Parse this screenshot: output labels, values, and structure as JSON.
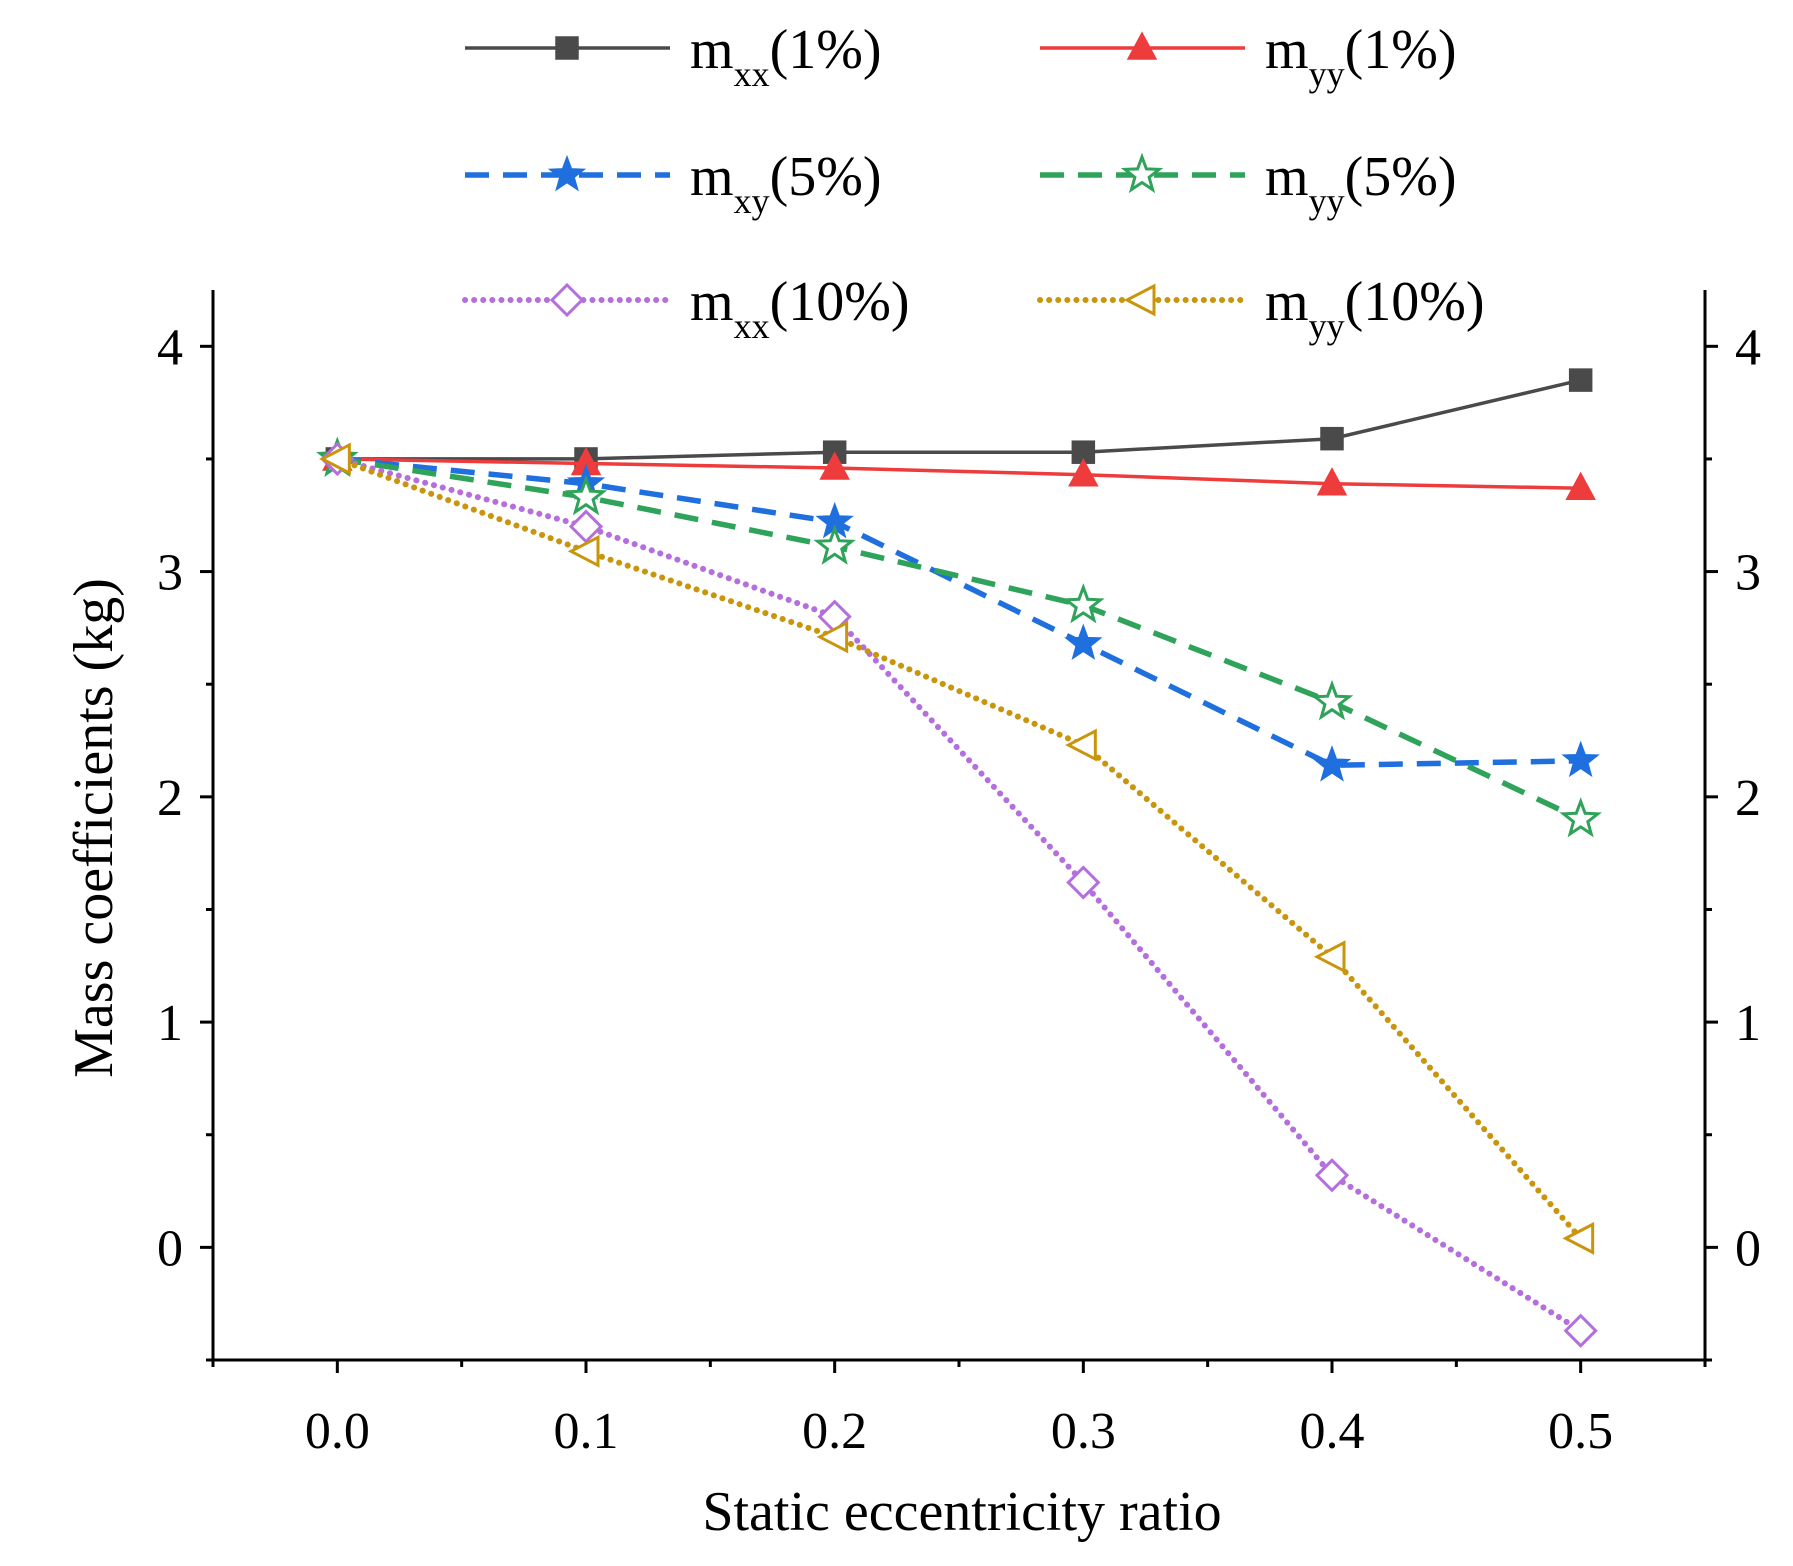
{
  "chart_data": {
    "type": "line",
    "title": "",
    "xlabel": "Static eccentricity ratio",
    "ylabel": "Mass coefficients (kg)",
    "xlim": [
      -0.05,
      0.55
    ],
    "ylim": [
      -0.5,
      4.25
    ],
    "x_ticks": [
      0.0,
      0.1,
      0.2,
      0.3,
      0.4,
      0.5
    ],
    "x_tick_labels": [
      "0.0",
      "0.1",
      "0.2",
      "0.3",
      "0.4",
      "0.5"
    ],
    "y_ticks": [
      0,
      1,
      2,
      3,
      4
    ],
    "y_tick_labels": [
      "0",
      "1",
      "2",
      "3",
      "4"
    ],
    "legend_position": "top",
    "x": [
      0.0,
      0.1,
      0.2,
      0.3,
      0.4,
      0.5
    ],
    "series": [
      {
        "name_main": "m",
        "name_sub": "xx",
        "name_suffix": "(1%)",
        "color": "#4a4a4a",
        "dash": "solid",
        "marker": "square",
        "filled": true,
        "values": [
          3.5,
          3.5,
          3.53,
          3.53,
          3.59,
          3.85
        ]
      },
      {
        "name_main": "m",
        "name_sub": "yy",
        "name_suffix": "(1%)",
        "color": "#ee3b3b",
        "dash": "solid",
        "marker": "triangle",
        "filled": true,
        "values": [
          3.5,
          3.48,
          3.46,
          3.43,
          3.39,
          3.37
        ]
      },
      {
        "name_main": "m",
        "name_sub": "xy",
        "name_suffix": "(5%)",
        "color": "#1f6fde",
        "dash": "dashed",
        "marker": "star",
        "filled": true,
        "values": [
          3.5,
          3.39,
          3.22,
          2.68,
          2.14,
          2.16
        ]
      },
      {
        "name_main": "m",
        "name_sub": "yy",
        "name_suffix": "(5%)",
        "color": "#2fa35a",
        "dash": "dashed",
        "marker": "star",
        "filled": false,
        "values": [
          3.5,
          3.33,
          3.11,
          2.85,
          2.42,
          1.9
        ]
      },
      {
        "name_main": "m",
        "name_sub": "xx",
        "name_suffix": "(10%)",
        "color": "#b46fdd",
        "dash": "dotted",
        "marker": "diamond",
        "filled": false,
        "values": [
          3.5,
          3.2,
          2.8,
          1.62,
          0.32,
          -0.37
        ]
      },
      {
        "name_main": "m",
        "name_sub": "yy",
        "name_suffix": "(10%)",
        "color": "#c9950c",
        "dash": "dotted",
        "marker": "triangle-left",
        "filled": false,
        "values": [
          3.5,
          3.09,
          2.71,
          2.23,
          1.29,
          0.04
        ]
      }
    ]
  }
}
